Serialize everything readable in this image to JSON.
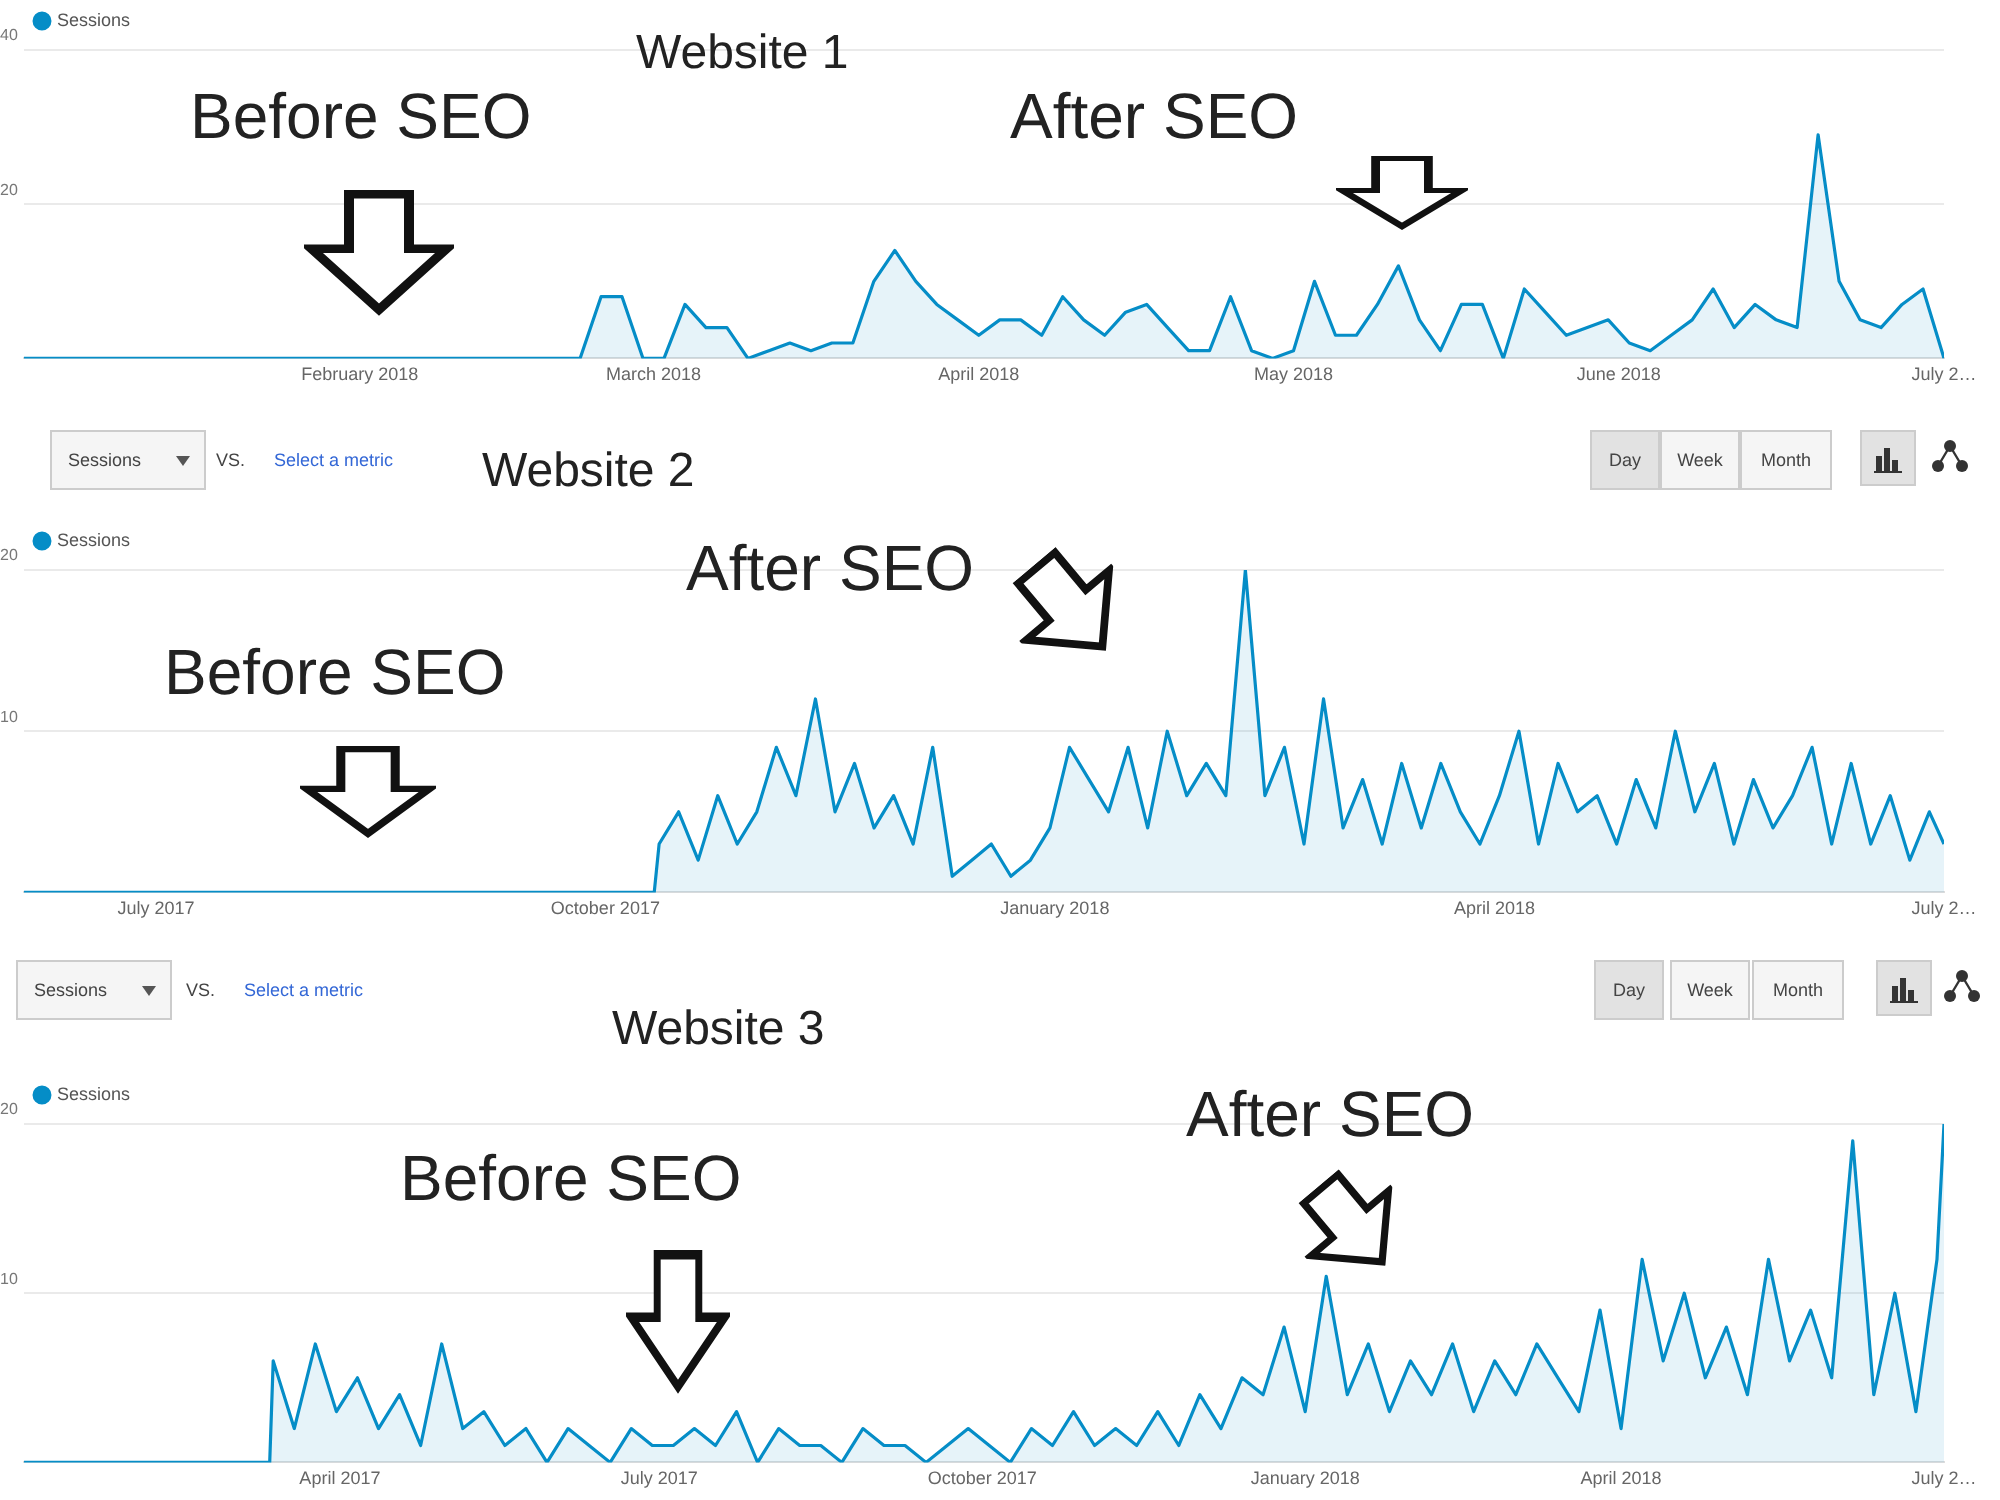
{
  "chart_data": [
    {
      "type": "area",
      "title": "Website 1",
      "annotations": [
        "Before SEO",
        "After SEO"
      ],
      "xlim": [
        "2017-12-31",
        "2018-07-02"
      ],
      "xticks": [
        {
          "value": "2018-02-01",
          "label": "February 2018"
        },
        {
          "value": "2018-03-01",
          "label": "March 2018"
        },
        {
          "value": "2018-04-01",
          "label": "April 2018"
        },
        {
          "value": "2018-05-01",
          "label": "May 2018"
        },
        {
          "value": "2018-06-01",
          "label": "June 2018"
        },
        {
          "value": "2018-07-02",
          "label": "July 2…"
        }
      ],
      "ylim": [
        0,
        40
      ],
      "yticks": [
        20,
        40
      ],
      "grid": "y",
      "legend": "top left",
      "marker": "none",
      "series": [
        {
          "name": "Sessions",
          "color": "#058dc7",
          "x": [
            "2017-12-31",
            "2018-02-22",
            "2018-02-24",
            "2018-02-26",
            "2018-02-28",
            "2018-03-02",
            "2018-03-04",
            "2018-03-06",
            "2018-03-08",
            "2018-03-10",
            "2018-03-12",
            "2018-03-14",
            "2018-03-16",
            "2018-03-18",
            "2018-03-20",
            "2018-03-22",
            "2018-03-24",
            "2018-03-26",
            "2018-03-28",
            "2018-03-30",
            "2018-04-01",
            "2018-04-03",
            "2018-04-05",
            "2018-04-07",
            "2018-04-09",
            "2018-04-11",
            "2018-04-13",
            "2018-04-15",
            "2018-04-17",
            "2018-04-19",
            "2018-04-21",
            "2018-04-23",
            "2018-04-25",
            "2018-04-27",
            "2018-04-29",
            "2018-05-01",
            "2018-05-03",
            "2018-05-05",
            "2018-05-07",
            "2018-05-09",
            "2018-05-11",
            "2018-05-13",
            "2018-05-15",
            "2018-05-17",
            "2018-05-19",
            "2018-05-21",
            "2018-05-23",
            "2018-05-25",
            "2018-05-27",
            "2018-05-29",
            "2018-05-31",
            "2018-06-02",
            "2018-06-04",
            "2018-06-06",
            "2018-06-08",
            "2018-06-10",
            "2018-06-12",
            "2018-06-14",
            "2018-06-16",
            "2018-06-18",
            "2018-06-20",
            "2018-06-22",
            "2018-06-24",
            "2018-06-26",
            "2018-06-28",
            "2018-06-30",
            "2018-07-02"
          ],
          "values": [
            0,
            0,
            8,
            8,
            0,
            0,
            7,
            4,
            4,
            0,
            1,
            2,
            1,
            2,
            2,
            10,
            14,
            10,
            7,
            5,
            3,
            5,
            5,
            3,
            8,
            5,
            3,
            6,
            7,
            4,
            1,
            1,
            8,
            1,
            0,
            1,
            10,
            3,
            3,
            7,
            12,
            5,
            1,
            7,
            7,
            0,
            9,
            6,
            3,
            4,
            5,
            2,
            1,
            3,
            5,
            9,
            4,
            7,
            5,
            4,
            29,
            10,
            5,
            4,
            7,
            9,
            0
          ]
        }
      ]
    },
    {
      "type": "area",
      "title": "Website 2",
      "annotations": [
        "Before SEO",
        "After SEO",
        "Sessions",
        "VS.",
        "Select a metric",
        "Day",
        "Week",
        "Month"
      ],
      "xlim": [
        "2017-06-04",
        "2018-07-02"
      ],
      "xticks": [
        {
          "value": "2017-07-01",
          "label": "July 2017"
        },
        {
          "value": "2017-10-01",
          "label": "October 2017"
        },
        {
          "value": "2018-01-01",
          "label": "January 2018"
        },
        {
          "value": "2018-04-01",
          "label": "April 2018"
        },
        {
          "value": "2018-07-02",
          "label": "July 2…"
        }
      ],
      "ylim": [
        0,
        20
      ],
      "yticks": [
        10,
        20
      ],
      "grid": "y",
      "legend": "top left",
      "marker": "none",
      "series": [
        {
          "name": "Sessions",
          "color": "#058dc7",
          "x": [
            "2017-06-04",
            "2017-10-11",
            "2017-10-12",
            "2017-10-16",
            "2017-10-20",
            "2017-10-24",
            "2017-10-28",
            "2017-11-01",
            "2017-11-05",
            "2017-11-09",
            "2017-11-13",
            "2017-11-17",
            "2017-11-21",
            "2017-11-25",
            "2017-11-29",
            "2017-12-03",
            "2017-12-07",
            "2017-12-11",
            "2017-12-15",
            "2017-12-19",
            "2017-12-23",
            "2017-12-27",
            "2017-12-31",
            "2018-01-04",
            "2018-01-08",
            "2018-01-12",
            "2018-01-16",
            "2018-01-20",
            "2018-01-24",
            "2018-01-28",
            "2018-02-01",
            "2018-02-05",
            "2018-02-09",
            "2018-02-13",
            "2018-02-17",
            "2018-02-21",
            "2018-02-25",
            "2018-03-01",
            "2018-03-05",
            "2018-03-09",
            "2018-03-13",
            "2018-03-17",
            "2018-03-21",
            "2018-03-25",
            "2018-03-29",
            "2018-04-02",
            "2018-04-06",
            "2018-04-10",
            "2018-04-14",
            "2018-04-18",
            "2018-04-22",
            "2018-04-26",
            "2018-04-30",
            "2018-05-04",
            "2018-05-08",
            "2018-05-12",
            "2018-05-16",
            "2018-05-20",
            "2018-05-24",
            "2018-05-28",
            "2018-06-01",
            "2018-06-05",
            "2018-06-09",
            "2018-06-13",
            "2018-06-17",
            "2018-06-21",
            "2018-06-25",
            "2018-06-29",
            "2018-07-02"
          ],
          "values": [
            0,
            0,
            3,
            5,
            2,
            6,
            3,
            5,
            9,
            6,
            12,
            5,
            8,
            4,
            6,
            3,
            9,
            1,
            2,
            3,
            1,
            2,
            4,
            9,
            7,
            5,
            9,
            4,
            10,
            6,
            8,
            6,
            20,
            6,
            9,
            3,
            12,
            4,
            7,
            3,
            8,
            4,
            8,
            5,
            3,
            6,
            10,
            3,
            8,
            5,
            6,
            3,
            7,
            4,
            10,
            5,
            8,
            3,
            7,
            4,
            6,
            9,
            3,
            8,
            3,
            6,
            2,
            5,
            3
          ]
        }
      ]
    },
    {
      "type": "area",
      "title": "Website 3",
      "annotations": [
        "Before SEO",
        "After SEO",
        "Sessions",
        "VS.",
        "Select a metric",
        "Day",
        "Week",
        "Month"
      ],
      "xlim": [
        "2017-01-01",
        "2018-07-02"
      ],
      "xticks": [
        {
          "value": "2017-04-01",
          "label": "April 2017"
        },
        {
          "value": "2017-07-01",
          "label": "July 2017"
        },
        {
          "value": "2017-10-01",
          "label": "October 2017"
        },
        {
          "value": "2018-01-01",
          "label": "January 2018"
        },
        {
          "value": "2018-04-01",
          "label": "April 2018"
        },
        {
          "value": "2018-07-02",
          "label": "July 2…"
        }
      ],
      "ylim": [
        0,
        20
      ],
      "yticks": [
        10,
        20
      ],
      "grid": "y",
      "legend": "top left",
      "marker": "none",
      "series": [
        {
          "name": "Sessions",
          "color": "#058dc7",
          "x": [
            "2017-01-01",
            "2017-03-12",
            "2017-03-13",
            "2017-03-19",
            "2017-03-25",
            "2017-03-31",
            "2017-04-06",
            "2017-04-12",
            "2017-04-18",
            "2017-04-24",
            "2017-04-30",
            "2017-05-06",
            "2017-05-12",
            "2017-05-18",
            "2017-05-24",
            "2017-05-30",
            "2017-06-05",
            "2017-06-11",
            "2017-06-17",
            "2017-06-23",
            "2017-06-29",
            "2017-07-05",
            "2017-07-11",
            "2017-07-17",
            "2017-07-23",
            "2017-07-29",
            "2017-08-04",
            "2017-08-10",
            "2017-08-16",
            "2017-08-22",
            "2017-08-28",
            "2017-09-03",
            "2017-09-09",
            "2017-09-15",
            "2017-09-21",
            "2017-09-27",
            "2017-10-03",
            "2017-10-09",
            "2017-10-15",
            "2017-10-21",
            "2017-10-27",
            "2017-11-02",
            "2017-11-08",
            "2017-11-14",
            "2017-11-20",
            "2017-11-26",
            "2017-12-02",
            "2017-12-08",
            "2017-12-14",
            "2017-12-20",
            "2017-12-26",
            "2018-01-01",
            "2018-01-07",
            "2018-01-13",
            "2018-01-19",
            "2018-01-25",
            "2018-01-31",
            "2018-02-06",
            "2018-02-12",
            "2018-02-18",
            "2018-02-24",
            "2018-03-02",
            "2018-03-08",
            "2018-03-14",
            "2018-03-20",
            "2018-03-26",
            "2018-04-01",
            "2018-04-07",
            "2018-04-13",
            "2018-04-19",
            "2018-04-25",
            "2018-05-01",
            "2018-05-07",
            "2018-05-13",
            "2018-05-19",
            "2018-05-25",
            "2018-05-31",
            "2018-06-06",
            "2018-06-12",
            "2018-06-18",
            "2018-06-24",
            "2018-06-30",
            "2018-07-02"
          ],
          "values": [
            0,
            0,
            6,
            2,
            7,
            3,
            5,
            2,
            4,
            1,
            7,
            2,
            3,
            1,
            2,
            0,
            2,
            1,
            0,
            2,
            1,
            1,
            2,
            1,
            3,
            0,
            2,
            1,
            1,
            0,
            2,
            1,
            1,
            0,
            1,
            2,
            1,
            0,
            2,
            1,
            3,
            1,
            2,
            1,
            3,
            1,
            4,
            2,
            5,
            4,
            8,
            3,
            11,
            4,
            7,
            3,
            6,
            4,
            7,
            3,
            6,
            4,
            7,
            5,
            3,
            9,
            2,
            12,
            6,
            10,
            5,
            8,
            4,
            12,
            6,
            9,
            5,
            19,
            4,
            10,
            3,
            12,
            20
          ]
        }
      ]
    }
  ]
}
